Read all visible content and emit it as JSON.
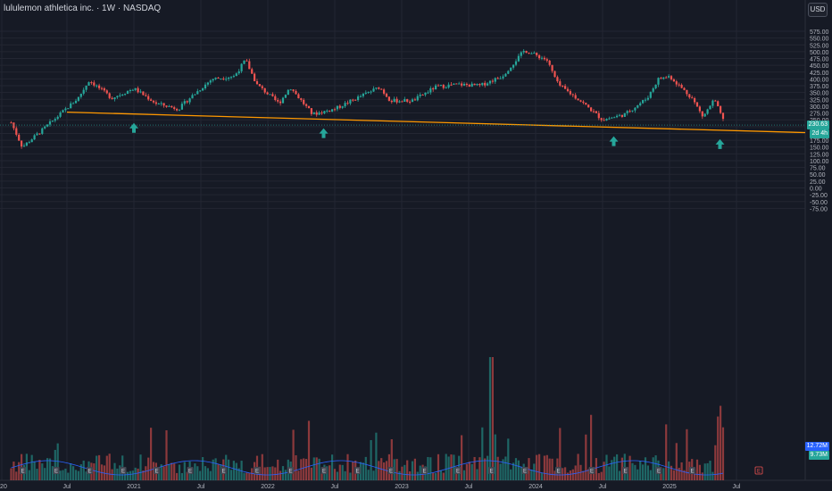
{
  "header": {
    "title": "lululemon athletica inc. · 1W · NASDAQ",
    "currency": "USD"
  },
  "price_tag": {
    "value": "230.63",
    "sub": "2d 4h"
  },
  "volume_tags": {
    "v1": "12.72M",
    "v2": "9.73M"
  },
  "x_axis": {
    "labels": [
      "020",
      "Jul",
      "2021",
      "Jul",
      "2022",
      "Jul",
      "2023",
      "Jul",
      "2024",
      "Jul",
      "2025",
      "Jul"
    ]
  },
  "colors": {
    "up": "#26a69a",
    "down": "#ef5350",
    "support": "#ff9800",
    "arrow": "#26a69a",
    "volume_ma": "#2962ff",
    "background": "#161a25"
  },
  "support_line": {
    "start": {
      "date": "2020-07",
      "price": 278
    },
    "end": {
      "date": "2025-07",
      "price": 210
    }
  },
  "markers": {
    "arrows": [
      "2021-01",
      "2022-06",
      "2024-08",
      "2025-06"
    ],
    "earnings_letter": "E",
    "upcoming_earnings_letter": "E"
  },
  "chart_data": {
    "type": "candlestick",
    "title": "lululemon athletica inc. · 1W · NASDAQ",
    "y_axis": {
      "labels": [
        "575.00",
        "550.00",
        "525.00",
        "500.00",
        "475.00",
        "450.00",
        "425.00",
        "400.00",
        "375.00",
        "350.00",
        "325.00",
        "300.00",
        "275.00",
        "250.00",
        "225.00",
        "200.00",
        "175.00",
        "150.00",
        "125.00",
        "100.00",
        "75.00",
        "50.00",
        "25.00",
        "0.00",
        "-25.00",
        "-50.00",
        "-75.00"
      ],
      "range": [
        -75,
        575
      ]
    },
    "price_waypoints": [
      [
        "2020-02",
        240
      ],
      [
        "2020-03",
        150
      ],
      [
        "2020-05",
        220
      ],
      [
        "2020-08",
        330
      ],
      [
        "2020-09",
        395
      ],
      [
        "2020-11",
        330
      ],
      [
        "2021-01",
        365
      ],
      [
        "2021-03",
        310
      ],
      [
        "2021-05",
        290
      ],
      [
        "2021-06",
        330
      ],
      [
        "2021-08",
        400
      ],
      [
        "2021-10",
        410
      ],
      [
        "2021-11",
        470
      ],
      [
        "2021-12",
        380
      ],
      [
        "2022-02",
        310
      ],
      [
        "2022-03",
        370
      ],
      [
        "2022-05",
        270
      ],
      [
        "2022-07",
        290
      ],
      [
        "2022-09",
        330
      ],
      [
        "2022-11",
        370
      ],
      [
        "2022-12",
        320
      ],
      [
        "2023-02",
        320
      ],
      [
        "2023-04",
        370
      ],
      [
        "2023-06",
        380
      ],
      [
        "2023-08",
        375
      ],
      [
        "2023-10",
        410
      ],
      [
        "2023-12",
        505
      ],
      [
        "2024-02",
        470
      ],
      [
        "2024-03",
        380
      ],
      [
        "2024-05",
        320
      ],
      [
        "2024-07",
        250
      ],
      [
        "2024-09",
        270
      ],
      [
        "2024-11",
        330
      ],
      [
        "2024-12",
        400
      ],
      [
        "2025-01",
        410
      ],
      [
        "2025-03",
        330
      ],
      [
        "2025-04",
        260
      ],
      [
        "2025-05",
        325
      ],
      [
        "2025-06",
        230
      ]
    ],
    "last_price": 230.63,
    "volume_ma": [
      12.72,
      9.73
    ]
  }
}
